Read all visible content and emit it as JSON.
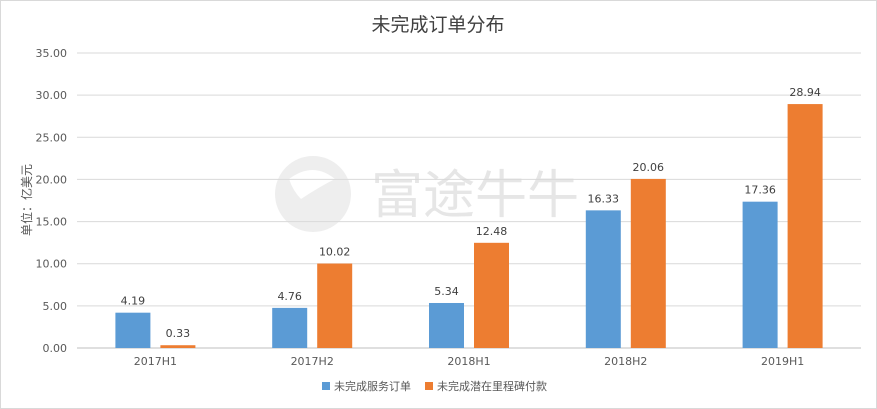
{
  "chart_data": {
    "type": "bar",
    "title": "未完成订单分布",
    "ylabel": "单位：亿美元",
    "xlabel": "",
    "categories": [
      "2017H1",
      "2017H2",
      "2018H1",
      "2018H2",
      "2019H1"
    ],
    "series": [
      {
        "name": "未完成服务订单",
        "color": "#5b9bd5",
        "values": [
          4.19,
          4.76,
          5.34,
          16.33,
          17.36
        ]
      },
      {
        "name": "未完成潜在里程碑付款",
        "color": "#ed7d31",
        "values": [
          0.33,
          10.02,
          12.48,
          20.06,
          28.94
        ]
      }
    ],
    "ylim": [
      0,
      35
    ],
    "yticks": [
      0,
      5,
      10,
      15,
      20,
      25,
      30,
      35
    ],
    "ytick_decimals": 2,
    "grid": true,
    "legend_position": "bottom",
    "watermark": "富途牛牛"
  }
}
